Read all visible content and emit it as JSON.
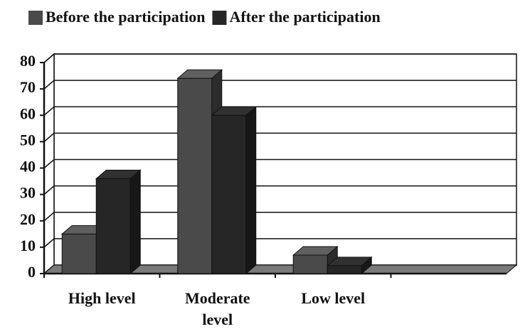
{
  "chart_data": {
    "type": "bar3d",
    "categories": [
      "High level",
      "Moderate level",
      "Low level",
      null
    ],
    "series": [
      {
        "name": "Before the participation",
        "color": "#4a4a4a",
        "values": [
          15,
          74,
          7,
          null
        ]
      },
      {
        "name": "After the participation",
        "color": "#262626",
        "values": [
          36,
          60,
          3,
          null
        ]
      }
    ],
    "ylim": [
      0,
      80
    ],
    "yticks": [
      0,
      10,
      20,
      30,
      40,
      50,
      60,
      70,
      80
    ],
    "grid": true,
    "legend": "top"
  }
}
